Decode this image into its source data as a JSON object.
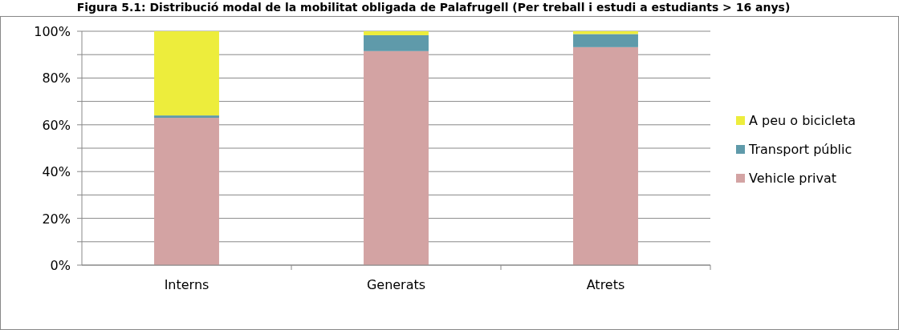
{
  "chart_data": {
    "type": "bar",
    "title": "Figura 5.1: Distribució modal de la mobilitat obligada de Palafrugell (Per treball i estudi a estudiants > 16 anys)",
    "categories": [
      "Interns",
      "Generats",
      "Atrets"
    ],
    "series": [
      {
        "name": "Vehicle privat",
        "color": "#d3a3a3",
        "values": [
          63,
          91.5,
          93.2
        ]
      },
      {
        "name": "Transport públic",
        "color": "#5f9aaa",
        "values": [
          1,
          6.8,
          5.6
        ]
      },
      {
        "name": "A peu o bicicleta",
        "color": "#eded3c",
        "values": [
          36,
          1.7,
          1.2
        ]
      }
    ],
    "stacked": true,
    "ylim": [
      0,
      100
    ],
    "yticks": [
      {
        "value": 0,
        "label": "0%"
      },
      {
        "value": 10,
        "label": null
      },
      {
        "value": 20,
        "label": "20%"
      },
      {
        "value": 30,
        "label": null
      },
      {
        "value": 40,
        "label": "40%"
      },
      {
        "value": 50,
        "label": null
      },
      {
        "value": 60,
        "label": "60%"
      },
      {
        "value": 70,
        "label": null
      },
      {
        "value": 80,
        "label": "80%"
      },
      {
        "value": 90,
        "label": null
      },
      {
        "value": 100,
        "label": "100%"
      }
    ],
    "grid": "y",
    "legend": "right"
  }
}
